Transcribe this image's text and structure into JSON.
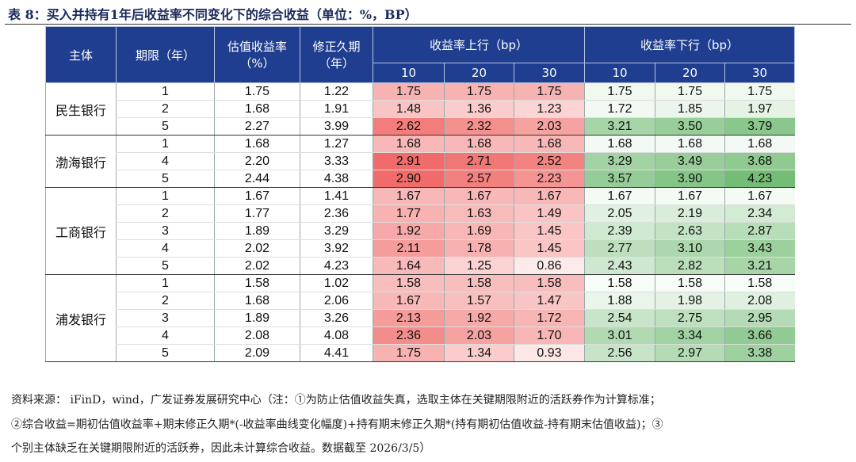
{
  "title": "表 8：买入并持有1年后收益率不同变化下的综合收益（单位：%，BP）",
  "table": {
    "headers": {
      "entity": "主体",
      "term": "期限（年）",
      "yield": "估值收益率（%）",
      "duration": "修正久期（年）",
      "up": "收益率上行（bp）",
      "down": "收益率下行（bp）",
      "up_sub": [
        "10",
        "20",
        "30"
      ],
      "down_sub": [
        "10",
        "20",
        "30"
      ]
    },
    "groups": [
      {
        "name": "民生银行",
        "rows": [
          [
            "1",
            "1.75",
            "1.22",
            "1.75",
            "1.75",
            "1.75",
            "1.75",
            "1.75",
            "1.75"
          ],
          [
            "2",
            "1.68",
            "1.91",
            "1.48",
            "1.36",
            "1.23",
            "1.72",
            "1.85",
            "1.97"
          ],
          [
            "5",
            "2.27",
            "3.99",
            "2.62",
            "2.32",
            "2.03",
            "3.21",
            "3.50",
            "3.79"
          ]
        ]
      },
      {
        "name": "渤海银行",
        "rows": [
          [
            "1",
            "1.68",
            "1.27",
            "1.68",
            "1.68",
            "1.68",
            "1.68",
            "1.68",
            "1.68"
          ],
          [
            "4",
            "2.20",
            "3.33",
            "2.91",
            "2.71",
            "2.52",
            "3.29",
            "3.49",
            "3.68"
          ],
          [
            "5",
            "2.44",
            "4.38",
            "2.90",
            "2.57",
            "2.23",
            "3.57",
            "3.90",
            "4.23"
          ]
        ]
      },
      {
        "name": "工商银行",
        "rows": [
          [
            "1",
            "1.67",
            "1.41",
            "1.67",
            "1.67",
            "1.67",
            "1.67",
            "1.67",
            "1.67"
          ],
          [
            "2",
            "1.77",
            "2.36",
            "1.77",
            "1.63",
            "1.49",
            "2.05",
            "2.19",
            "2.34"
          ],
          [
            "3",
            "1.89",
            "3.29",
            "1.92",
            "1.69",
            "1.45",
            "2.39",
            "2.63",
            "2.87"
          ],
          [
            "4",
            "2.02",
            "3.92",
            "2.11",
            "1.78",
            "1.45",
            "2.77",
            "3.10",
            "3.43"
          ],
          [
            "5",
            "2.02",
            "4.23",
            "1.64",
            "1.25",
            "0.86",
            "2.43",
            "2.82",
            "3.21"
          ]
        ]
      },
      {
        "name": "浦发银行",
        "rows": [
          [
            "1",
            "1.58",
            "1.02",
            "1.58",
            "1.58",
            "1.58",
            "1.58",
            "1.58",
            "1.58"
          ],
          [
            "2",
            "1.68",
            "2.06",
            "1.67",
            "1.57",
            "1.47",
            "1.88",
            "1.98",
            "2.08"
          ],
          [
            "3",
            "1.89",
            "3.26",
            "2.13",
            "1.92",
            "1.72",
            "2.54",
            "2.75",
            "2.95"
          ],
          [
            "4",
            "2.08",
            "4.08",
            "2.36",
            "2.03",
            "1.70",
            "3.01",
            "3.34",
            "3.66"
          ],
          [
            "5",
            "2.09",
            "4.41",
            "1.75",
            "1.34",
            "0.93",
            "2.56",
            "2.97",
            "3.38"
          ]
        ]
      }
    ]
  },
  "source": [
    "资料来源： iFinD，wind，广发证券发展研究中心（注：①为防止估值收益失真，选取主体在关键期限附近的活跃券作为计算标准；",
    "②综合收益=期初估值收益率+期末修正久期*(-收益率曲线变化幅度)+持有期末修正久期*(持有期初估值收益-持有期末估值收益)；③",
    "个别主体缺乏在关键期限附近的活跃券，因此未计算综合收益。数据截至 2026/3/5）"
  ]
}
